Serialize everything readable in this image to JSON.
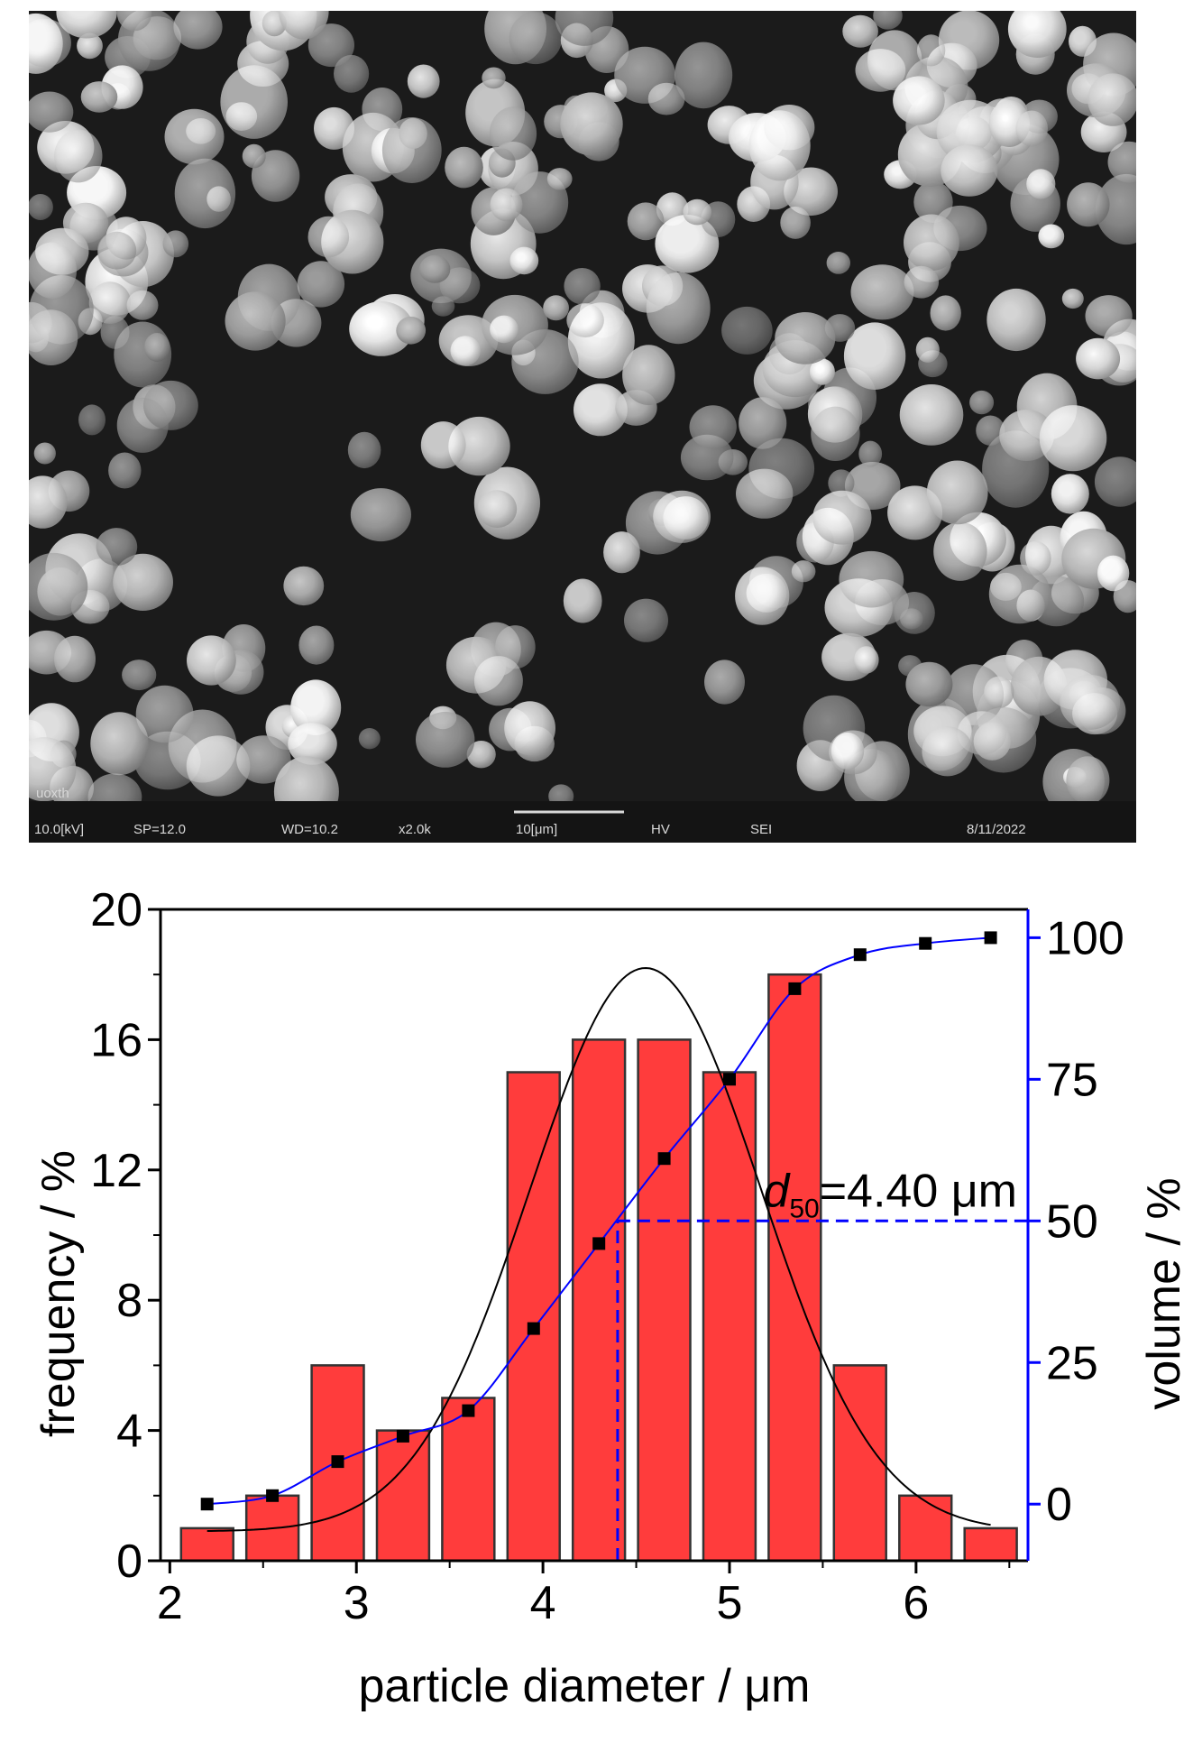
{
  "sem_image": {
    "databar": {
      "label_top": "uoxth",
      "items": [
        "10.0[kV]",
        "SP=12.0",
        "WD=10.2",
        "x2.0k",
        "10[μm]",
        "HV",
        "SEI",
        "8/11/2022"
      ]
    }
  },
  "chart_data": {
    "type": "bar",
    "xlabel": "particle diameter / μm",
    "ylabel": "frequency / %",
    "y2label": "volume / %",
    "xlim": [
      1.95,
      6.6
    ],
    "ylim": [
      0,
      20
    ],
    "y2lim": [
      -10,
      105
    ],
    "xticks": [
      2,
      3,
      4,
      5,
      6
    ],
    "yticks": [
      0,
      4,
      8,
      12,
      16,
      20
    ],
    "y2ticks": [
      0,
      25,
      50,
      75,
      100
    ],
    "bar_color": "#ff3c3c",
    "bar_width": 0.28,
    "bars": {
      "x": [
        2.2,
        2.55,
        2.9,
        3.25,
        3.6,
        3.95,
        4.3,
        4.65,
        5.0,
        5.35,
        5.7,
        6.05,
        6.4
      ],
      "values": [
        1,
        2,
        6,
        4,
        5,
        15,
        16,
        16,
        15,
        18,
        6,
        2,
        1
      ]
    },
    "gaussian_fit": {
      "color": "#000000",
      "x_range": [
        2.2,
        6.4
      ],
      "amplitude": 17.3,
      "center": 4.55,
      "sigma": 0.62,
      "offset": 0.9
    },
    "cumulative_volume": {
      "color": "#0000ff",
      "marker_color": "#000000",
      "x": [
        2.2,
        2.55,
        2.9,
        3.25,
        3.6,
        3.95,
        4.3,
        4.65,
        5.0,
        5.35,
        5.7,
        6.05,
        6.4
      ],
      "values": [
        0,
        1.5,
        7.5,
        12,
        16.5,
        31,
        46,
        61,
        75,
        91,
        97,
        99,
        100
      ]
    },
    "d50": {
      "value": 4.4,
      "volume_percent": 50,
      "color": "#0000ff",
      "label_symbol": "d",
      "label_subscript": "50",
      "label_value": "=4.40 μm"
    }
  }
}
